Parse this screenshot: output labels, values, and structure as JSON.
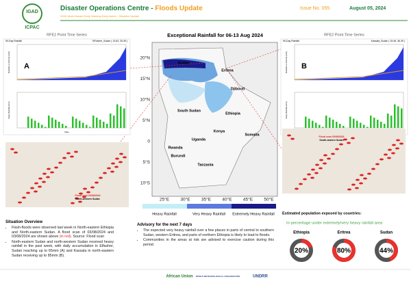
{
  "header": {
    "logo": "IGAD",
    "org": "ICPAC",
    "title": "Disaster Operations Centre - ",
    "title_highlight": "Floods Update",
    "subtitle": "IGAD Multi-Hazard Early Warning Early Action - Situation Update",
    "issue": "Issue No. 055",
    "date": "August 05, 2024"
  },
  "map": {
    "title": "Exceptional Rainfall for 06-13 Aug 2024",
    "lat_ticks": [
      "20°N",
      "15°N",
      "10°N",
      "5°N",
      "0",
      "5°S",
      "10°S"
    ],
    "lon_ticks": [
      "25°E",
      "30°E",
      "35°E",
      "40°E",
      "45°E",
      "50°E"
    ],
    "countries": [
      "Sudan",
      "Eritrea",
      "Djibouti",
      "South Sudan",
      "Ethiopia",
      "Kenya",
      "Somalia",
      "Uganda",
      "Rwanda",
      "Burundi",
      "Tanzania"
    ],
    "legend": [
      "Heavy Rainfall",
      "Very Heavy Rainfall",
      "Extremely Heavy Rainfall"
    ]
  },
  "panels": [
    {
      "letter": "A",
      "title": "RFE2 Point Time Series",
      "subtitle": "90-Day Rainfall",
      "location": "ElFasher_Sudan ( 13.63, 25.35 )",
      "y1": "Rainfall vs Normal (mm)",
      "y2": "Daily Rainfall (mm)",
      "xlabel": "Date",
      "scan_place": "Flood scan 03/08/2024",
      "scan_region": "North-western Sudan"
    },
    {
      "letter": "B",
      "title": "RFE2 Point Time Series",
      "subtitle": "90-Day Rainfall",
      "location": "Kassala_Sudan ( 15.46, 36.39 )",
      "y1": "Rainfall vs Normal (mm)",
      "y2": "Daily Rainfall (mm)",
      "xlabel": "Date",
      "scan_place": "Flood scan 03/08/2024",
      "scan_region": "South-eastern Sudan"
    }
  ],
  "situation": {
    "title": "Situation Overview",
    "b1a": "Flash-floods were observed last week in North-eastern Ethiopia and North-eastern Sudan. A flood scan of 03/08/2024 and 03/08/2024 are shown above ",
    "b1red": "(in red)",
    "b1b": ". Source: Flood scan",
    "b2": "North-eastern Sudan and north-western Sudan received heavy rainfall in the past week, with daily accumulation in Elfasher, Sudan reaching up to 65mm (A) and Kassala in north-eastern Sudan receiving up to 85mm (B)."
  },
  "advisory": {
    "title": "Advisory for the next 7 days",
    "b1": "The expected very heavy rainfall over a few places in parts of central to southern Sudan, western Eritrea, and parts of northern Ethiopia is likely to lead to floods.",
    "b2": "Communities in the areas at risk are advised to exercise caution during this period."
  },
  "population": {
    "title": "Estimated population exposed by countries:",
    "subtitle": "In percentage under extremely/very heavy rainfall area",
    "countries": [
      "Ethiopia",
      "Eritrea",
      "Sudan"
    ],
    "values": [
      20,
      80,
      44
    ],
    "value_labels": [
      "20%",
      "80%",
      "44%"
    ]
  },
  "footer": {
    "logos": [
      "African Union",
      "WORLD METEOROLOGICAL ORGANIZATION",
      "UNDRR"
    ]
  }
}
